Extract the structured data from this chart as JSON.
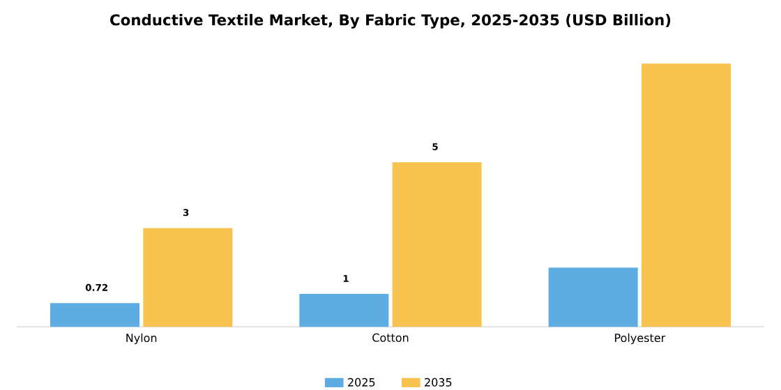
{
  "chart_data": {
    "type": "bar",
    "title": "Conductive Textile Market, By Fabric Type, 2025-2035 (USD Billion)",
    "categories": [
      "Nylon",
      "Cotton",
      "Polyester"
    ],
    "series": [
      {
        "name": "2025",
        "color": "#5dade2",
        "values": [
          0.72,
          1,
          1.8
        ],
        "value_labels": [
          "0.72",
          "1",
          null
        ]
      },
      {
        "name": "2035",
        "color": "#f9c34f",
        "values": [
          3,
          5,
          8
        ],
        "value_labels": [
          "3",
          "5",
          null
        ]
      }
    ],
    "legend": "bottom"
  }
}
